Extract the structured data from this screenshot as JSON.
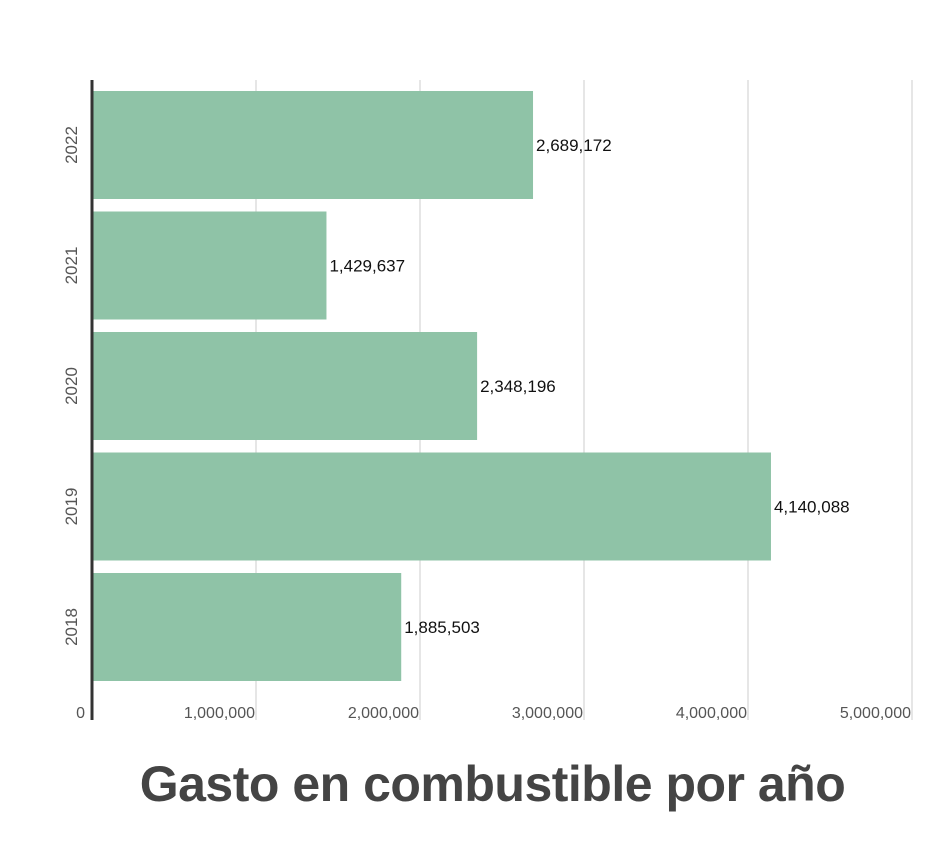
{
  "chart_data": {
    "type": "bar",
    "orientation": "horizontal",
    "title": "Gasto en combustible por año",
    "xlabel": "",
    "ylabel": "",
    "categories": [
      "2022",
      "2021",
      "2020",
      "2019",
      "2018"
    ],
    "values": [
      2689172,
      1429637,
      2348196,
      4140088,
      1885503
    ],
    "data_labels": [
      "2,689,172",
      "1,429,637",
      "2,348,196",
      "4,140,088",
      "1,885,503"
    ],
    "xlim": [
      0,
      5000000
    ],
    "x_ticks": [
      0,
      1000000,
      2000000,
      3000000,
      4000000,
      5000000
    ],
    "x_tick_labels": [
      "0",
      "1,000,000",
      "2,000,000",
      "3,000,000",
      "4,000,000",
      "5,000,000"
    ],
    "grid": true,
    "legend": "none",
    "colors": {
      "bar": "#8fc3a7",
      "grid": "#dddddd",
      "axis": "#333333",
      "title": "#444444",
      "tick_text": "#555555",
      "data_label_text": "#111111"
    }
  }
}
